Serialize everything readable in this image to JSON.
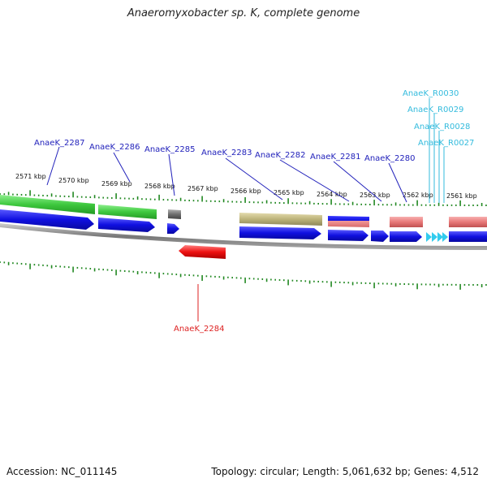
{
  "title": "Anaeromyxobacter sp. K, complete genome",
  "footer": {
    "accession": "Accession: NC_011145",
    "summary": "Topology: circular; Length: 5,061,632 bp; Genes: 4,512"
  },
  "colors": {
    "feature_label_top": "#2222bb",
    "feature_label_bottom": "#dd2222",
    "rna_label": "#33bbdd",
    "tick": "#228822",
    "backbone": "#888888",
    "cds": "#1010e0",
    "green_track": "#3ec83e",
    "gray_track": "#6e6e6e",
    "olive_track": "#bdb47a",
    "pink_track": "#e87878",
    "red_gene": "#ee1111",
    "trna": "#33ccee"
  },
  "kbp_labels": [
    "2571 kbp",
    "2570 kbp",
    "2569 kbp",
    "2568 kbp",
    "2567 kbp",
    "2566 kbp",
    "2565 kbp",
    "2564 kbp",
    "2563 kbp",
    "2562 kbp",
    "2561 kbp"
  ],
  "gene_labels_top": [
    "AnaeK_2287",
    "AnaeK_2286",
    "AnaeK_2285",
    "AnaeK_2283",
    "AnaeK_2282",
    "AnaeK_2281",
    "AnaeK_2280"
  ],
  "gene_label_bottom": "AnaeK_2284",
  "rna_labels": [
    "AnaeK_R0030",
    "AnaeK_R0029",
    "AnaeK_R0028",
    "AnaeK_R0027"
  ]
}
